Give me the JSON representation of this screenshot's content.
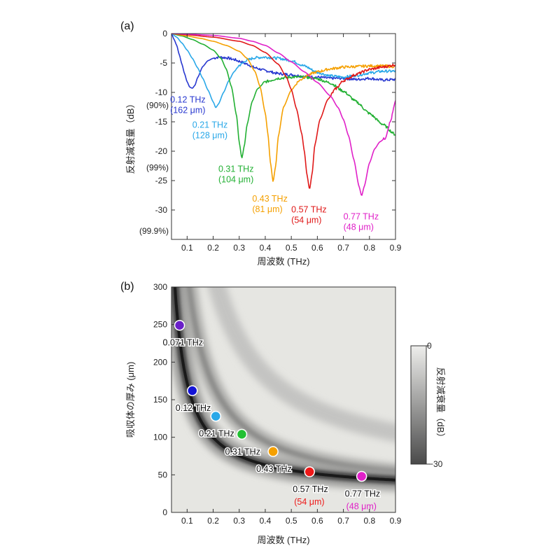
{
  "chart_data": [
    {
      "panel": "(a)",
      "type": "line",
      "xlabel": "周波数 (THz)",
      "ylabel": "反射減衰量（dB）",
      "xlim": [
        0.04,
        0.9
      ],
      "ylim": [
        -35,
        0
      ],
      "xticks": [
        "0.1",
        "0.2",
        "0.3",
        "0.4",
        "0.5",
        "0.6",
        "0.7",
        "0.8",
        "0.9"
      ],
      "yticks": [
        "0",
        "-5",
        "-10",
        "-15",
        "-20",
        "-25",
        "-30"
      ],
      "pct_labels": [
        {
          "y": -12.2,
          "text": "(90%)"
        },
        {
          "y": -22.8,
          "text": "(99%)"
        },
        {
          "y": -33.6,
          "text": "(99.9%)"
        }
      ],
      "grid": false,
      "series": [
        {
          "color": "#2838d0",
          "dip_x": 0.12,
          "dip_y": -9.3,
          "points": [
            [
              0.04,
              0
            ],
            [
              0.05,
              -1
            ],
            [
              0.06,
              -2
            ],
            [
              0.07,
              -3.6
            ],
            [
              0.08,
              -5.2
            ],
            [
              0.09,
              -6.8
            ],
            [
              0.1,
              -8.2
            ],
            [
              0.11,
              -9.1
            ],
            [
              0.12,
              -9.3
            ],
            [
              0.13,
              -8.8
            ],
            [
              0.14,
              -7.5
            ],
            [
              0.16,
              -5.6
            ],
            [
              0.18,
              -4.6
            ],
            [
              0.2,
              -4.2
            ],
            [
              0.22,
              -4.0
            ],
            [
              0.25,
              -4.1
            ],
            [
              0.28,
              -4.4
            ],
            [
              0.3,
              -4.7
            ],
            [
              0.33,
              -5.2
            ],
            [
              0.36,
              -5.8
            ],
            [
              0.4,
              -6.3
            ],
            [
              0.45,
              -6.8
            ],
            [
              0.5,
              -7.0
            ],
            [
              0.55,
              -7.3
            ],
            [
              0.6,
              -7.4
            ],
            [
              0.65,
              -7.6
            ],
            [
              0.7,
              -7.6
            ],
            [
              0.75,
              -7.8
            ],
            [
              0.8,
              -7.6
            ],
            [
              0.85,
              -7.9
            ],
            [
              0.9,
              -7.8
            ]
          ]
        },
        {
          "color": "#2aa8e8",
          "dip_x": 0.21,
          "dip_y": -12.6,
          "points": [
            [
              0.04,
              0
            ],
            [
              0.06,
              -0.6
            ],
            [
              0.08,
              -1.6
            ],
            [
              0.1,
              -2.8
            ],
            [
              0.12,
              -4.2
            ],
            [
              0.14,
              -5.8
            ],
            [
              0.16,
              -7.6
            ],
            [
              0.18,
              -9.6
            ],
            [
              0.2,
              -11.6
            ],
            [
              0.21,
              -12.6
            ],
            [
              0.22,
              -12.0
            ],
            [
              0.24,
              -10.0
            ],
            [
              0.26,
              -8.0
            ],
            [
              0.28,
              -6.5
            ],
            [
              0.3,
              -5.4
            ],
            [
              0.33,
              -4.5
            ],
            [
              0.36,
              -4.1
            ],
            [
              0.4,
              -4.0
            ],
            [
              0.45,
              -4.2
            ],
            [
              0.5,
              -4.6
            ],
            [
              0.55,
              -5.5
            ],
            [
              0.6,
              -6.6
            ],
            [
              0.65,
              -7.2
            ],
            [
              0.7,
              -7.4
            ],
            [
              0.75,
              -7.1
            ],
            [
              0.8,
              -6.7
            ],
            [
              0.85,
              -6.4
            ],
            [
              0.9,
              -6.4
            ]
          ]
        },
        {
          "color": "#22b033",
          "dip_x": 0.31,
          "dip_y": -21.2,
          "points": [
            [
              0.04,
              0
            ],
            [
              0.08,
              -0.4
            ],
            [
              0.12,
              -1.0
            ],
            [
              0.16,
              -1.8
            ],
            [
              0.2,
              -2.8
            ],
            [
              0.23,
              -4.2
            ],
            [
              0.25,
              -6.0
            ],
            [
              0.27,
              -9.0
            ],
            [
              0.29,
              -14.0
            ],
            [
              0.3,
              -18.5
            ],
            [
              0.31,
              -21.2
            ],
            [
              0.32,
              -19.0
            ],
            [
              0.33,
              -15.5
            ],
            [
              0.35,
              -11.5
            ],
            [
              0.37,
              -9.4
            ],
            [
              0.4,
              -8.2
            ],
            [
              0.45,
              -7.6
            ],
            [
              0.5,
              -7.4
            ],
            [
              0.55,
              -7.4
            ],
            [
              0.6,
              -7.7
            ],
            [
              0.65,
              -8.4
            ],
            [
              0.7,
              -9.8
            ],
            [
              0.75,
              -11.6
            ],
            [
              0.8,
              -13.6
            ],
            [
              0.85,
              -15.4
            ],
            [
              0.9,
              -17.2
            ]
          ]
        },
        {
          "color": "#f5a000",
          "dip_x": 0.43,
          "dip_y": -25.2,
          "points": [
            [
              0.04,
              0
            ],
            [
              0.1,
              -0.4
            ],
            [
              0.15,
              -0.8
            ],
            [
              0.2,
              -1.3
            ],
            [
              0.25,
              -2.0
            ],
            [
              0.3,
              -3.0
            ],
            [
              0.33,
              -4.2
            ],
            [
              0.36,
              -6.4
            ],
            [
              0.38,
              -9.0
            ],
            [
              0.4,
              -13.5
            ],
            [
              0.41,
              -17.0
            ],
            [
              0.42,
              -22.0
            ],
            [
              0.43,
              -25.2
            ],
            [
              0.44,
              -22.5
            ],
            [
              0.45,
              -17.5
            ],
            [
              0.47,
              -12.5
            ],
            [
              0.5,
              -9.6
            ],
            [
              0.53,
              -8.0
            ],
            [
              0.56,
              -7.1
            ],
            [
              0.6,
              -6.5
            ],
            [
              0.65,
              -6.0
            ],
            [
              0.7,
              -5.7
            ],
            [
              0.75,
              -5.6
            ],
            [
              0.8,
              -5.5
            ],
            [
              0.85,
              -5.5
            ],
            [
              0.9,
              -5.6
            ]
          ]
        },
        {
          "color": "#e01818",
          "dip_x": 0.57,
          "dip_y": -26.5,
          "points": [
            [
              0.04,
              0
            ],
            [
              0.1,
              -0.2
            ],
            [
              0.2,
              -0.6
            ],
            [
              0.3,
              -1.3
            ],
            [
              0.35,
              -2.0
            ],
            [
              0.4,
              -3.2
            ],
            [
              0.45,
              -5.2
            ],
            [
              0.48,
              -7.3
            ],
            [
              0.5,
              -9.5
            ],
            [
              0.52,
              -12.8
            ],
            [
              0.54,
              -17.0
            ],
            [
              0.55,
              -20.0
            ],
            [
              0.56,
              -24.0
            ],
            [
              0.57,
              -26.5
            ],
            [
              0.58,
              -23.8
            ],
            [
              0.59,
              -19.0
            ],
            [
              0.61,
              -14.6
            ],
            [
              0.64,
              -11.2
            ],
            [
              0.67,
              -9.4
            ],
            [
              0.7,
              -8.0
            ],
            [
              0.75,
              -6.9
            ],
            [
              0.8,
              -6.1
            ],
            [
              0.85,
              -5.7
            ],
            [
              0.9,
              -5.3
            ]
          ]
        },
        {
          "color": "#e020c8",
          "dip_x": 0.77,
          "dip_y": -27.6,
          "points": [
            [
              0.04,
              0
            ],
            [
              0.1,
              -0.1
            ],
            [
              0.2,
              -0.3
            ],
            [
              0.3,
              -0.8
            ],
            [
              0.35,
              -1.3
            ],
            [
              0.4,
              -2.0
            ],
            [
              0.45,
              -3.3
            ],
            [
              0.5,
              -4.8
            ],
            [
              0.55,
              -6.5
            ],
            [
              0.6,
              -8.3
            ],
            [
              0.65,
              -10.6
            ],
            [
              0.68,
              -12.6
            ],
            [
              0.7,
              -14.6
            ],
            [
              0.72,
              -17.4
            ],
            [
              0.74,
              -21.4
            ],
            [
              0.76,
              -26.0
            ],
            [
              0.77,
              -27.6
            ],
            [
              0.78,
              -26.0
            ],
            [
              0.8,
              -22.0
            ],
            [
              0.82,
              -19.6
            ],
            [
              0.84,
              -18.4
            ],
            [
              0.86,
              -17.8
            ],
            [
              0.88,
              -15.0
            ],
            [
              0.9,
              -11.6
            ]
          ]
        }
      ],
      "annotations": [
        {
          "freq": "0.12 THz",
          "size": "(162 μm)",
          "color": "#2838d0",
          "x": 0.035,
          "y": -11.7
        },
        {
          "freq": "0.21 THz",
          "size": "(128 μm)",
          "color": "#2aa8e8",
          "x": 0.12,
          "y": -16.0
        },
        {
          "freq": "0.31 THz",
          "size": "(104 μm)",
          "color": "#22b033",
          "x": 0.22,
          "y": -23.5
        },
        {
          "freq": "0.43 THz",
          "size": "(81 μm)",
          "color": "#f5a000",
          "x": 0.35,
          "y": -28.6
        },
        {
          "freq": "0.57 THz",
          "size": "(54 μm)",
          "color": "#e01818",
          "x": 0.5,
          "y": -30.4
        },
        {
          "freq": "0.77 THz",
          "size": "(48 μm)",
          "color": "#e020c8",
          "x": 0.7,
          "y": -31.6
        }
      ]
    },
    {
      "panel": "(b)",
      "type": "heatmap",
      "xlabel": "周波数 (THz)",
      "ylabel": "吸収体の厚み (μm)",
      "xlim": [
        0.04,
        0.9
      ],
      "ylim": [
        0,
        300
      ],
      "xticks": [
        "0.1",
        "0.2",
        "0.3",
        "0.4",
        "0.5",
        "0.6",
        "0.7",
        "0.8",
        "0.9"
      ],
      "yticks": [
        "0",
        "50",
        "100",
        "150",
        "200",
        "250",
        "300"
      ],
      "colorbar": {
        "label": "反射減衰量（dB）",
        "max_label": "0",
        "min_label": "−30",
        "range": [
          -30,
          0
        ]
      },
      "points": [
        {
          "x": 0.071,
          "y": 249,
          "color": "#6a1fc8",
          "label": "0.071 THz",
          "sub": ""
        },
        {
          "x": 0.12,
          "y": 162,
          "color": "#1414d6",
          "label": "0.12 THz",
          "sub": ""
        },
        {
          "x": 0.21,
          "y": 128,
          "color": "#2aa8e8",
          "label": "0.21 THz",
          "sub": ""
        },
        {
          "x": 0.31,
          "y": 104,
          "color": "#22c033",
          "label": "0.31 THz",
          "sub": ""
        },
        {
          "x": 0.43,
          "y": 81,
          "color": "#f5a000",
          "label": "0.43 THz",
          "sub": ""
        },
        {
          "x": 0.57,
          "y": 54,
          "color": "#ee1818",
          "label": "0.57 THz",
          "sub": "(54 μm)"
        },
        {
          "x": 0.77,
          "y": 48,
          "color": "#e020c8",
          "label": "0.77 THz",
          "sub": "(48 μm)"
        }
      ]
    }
  ]
}
